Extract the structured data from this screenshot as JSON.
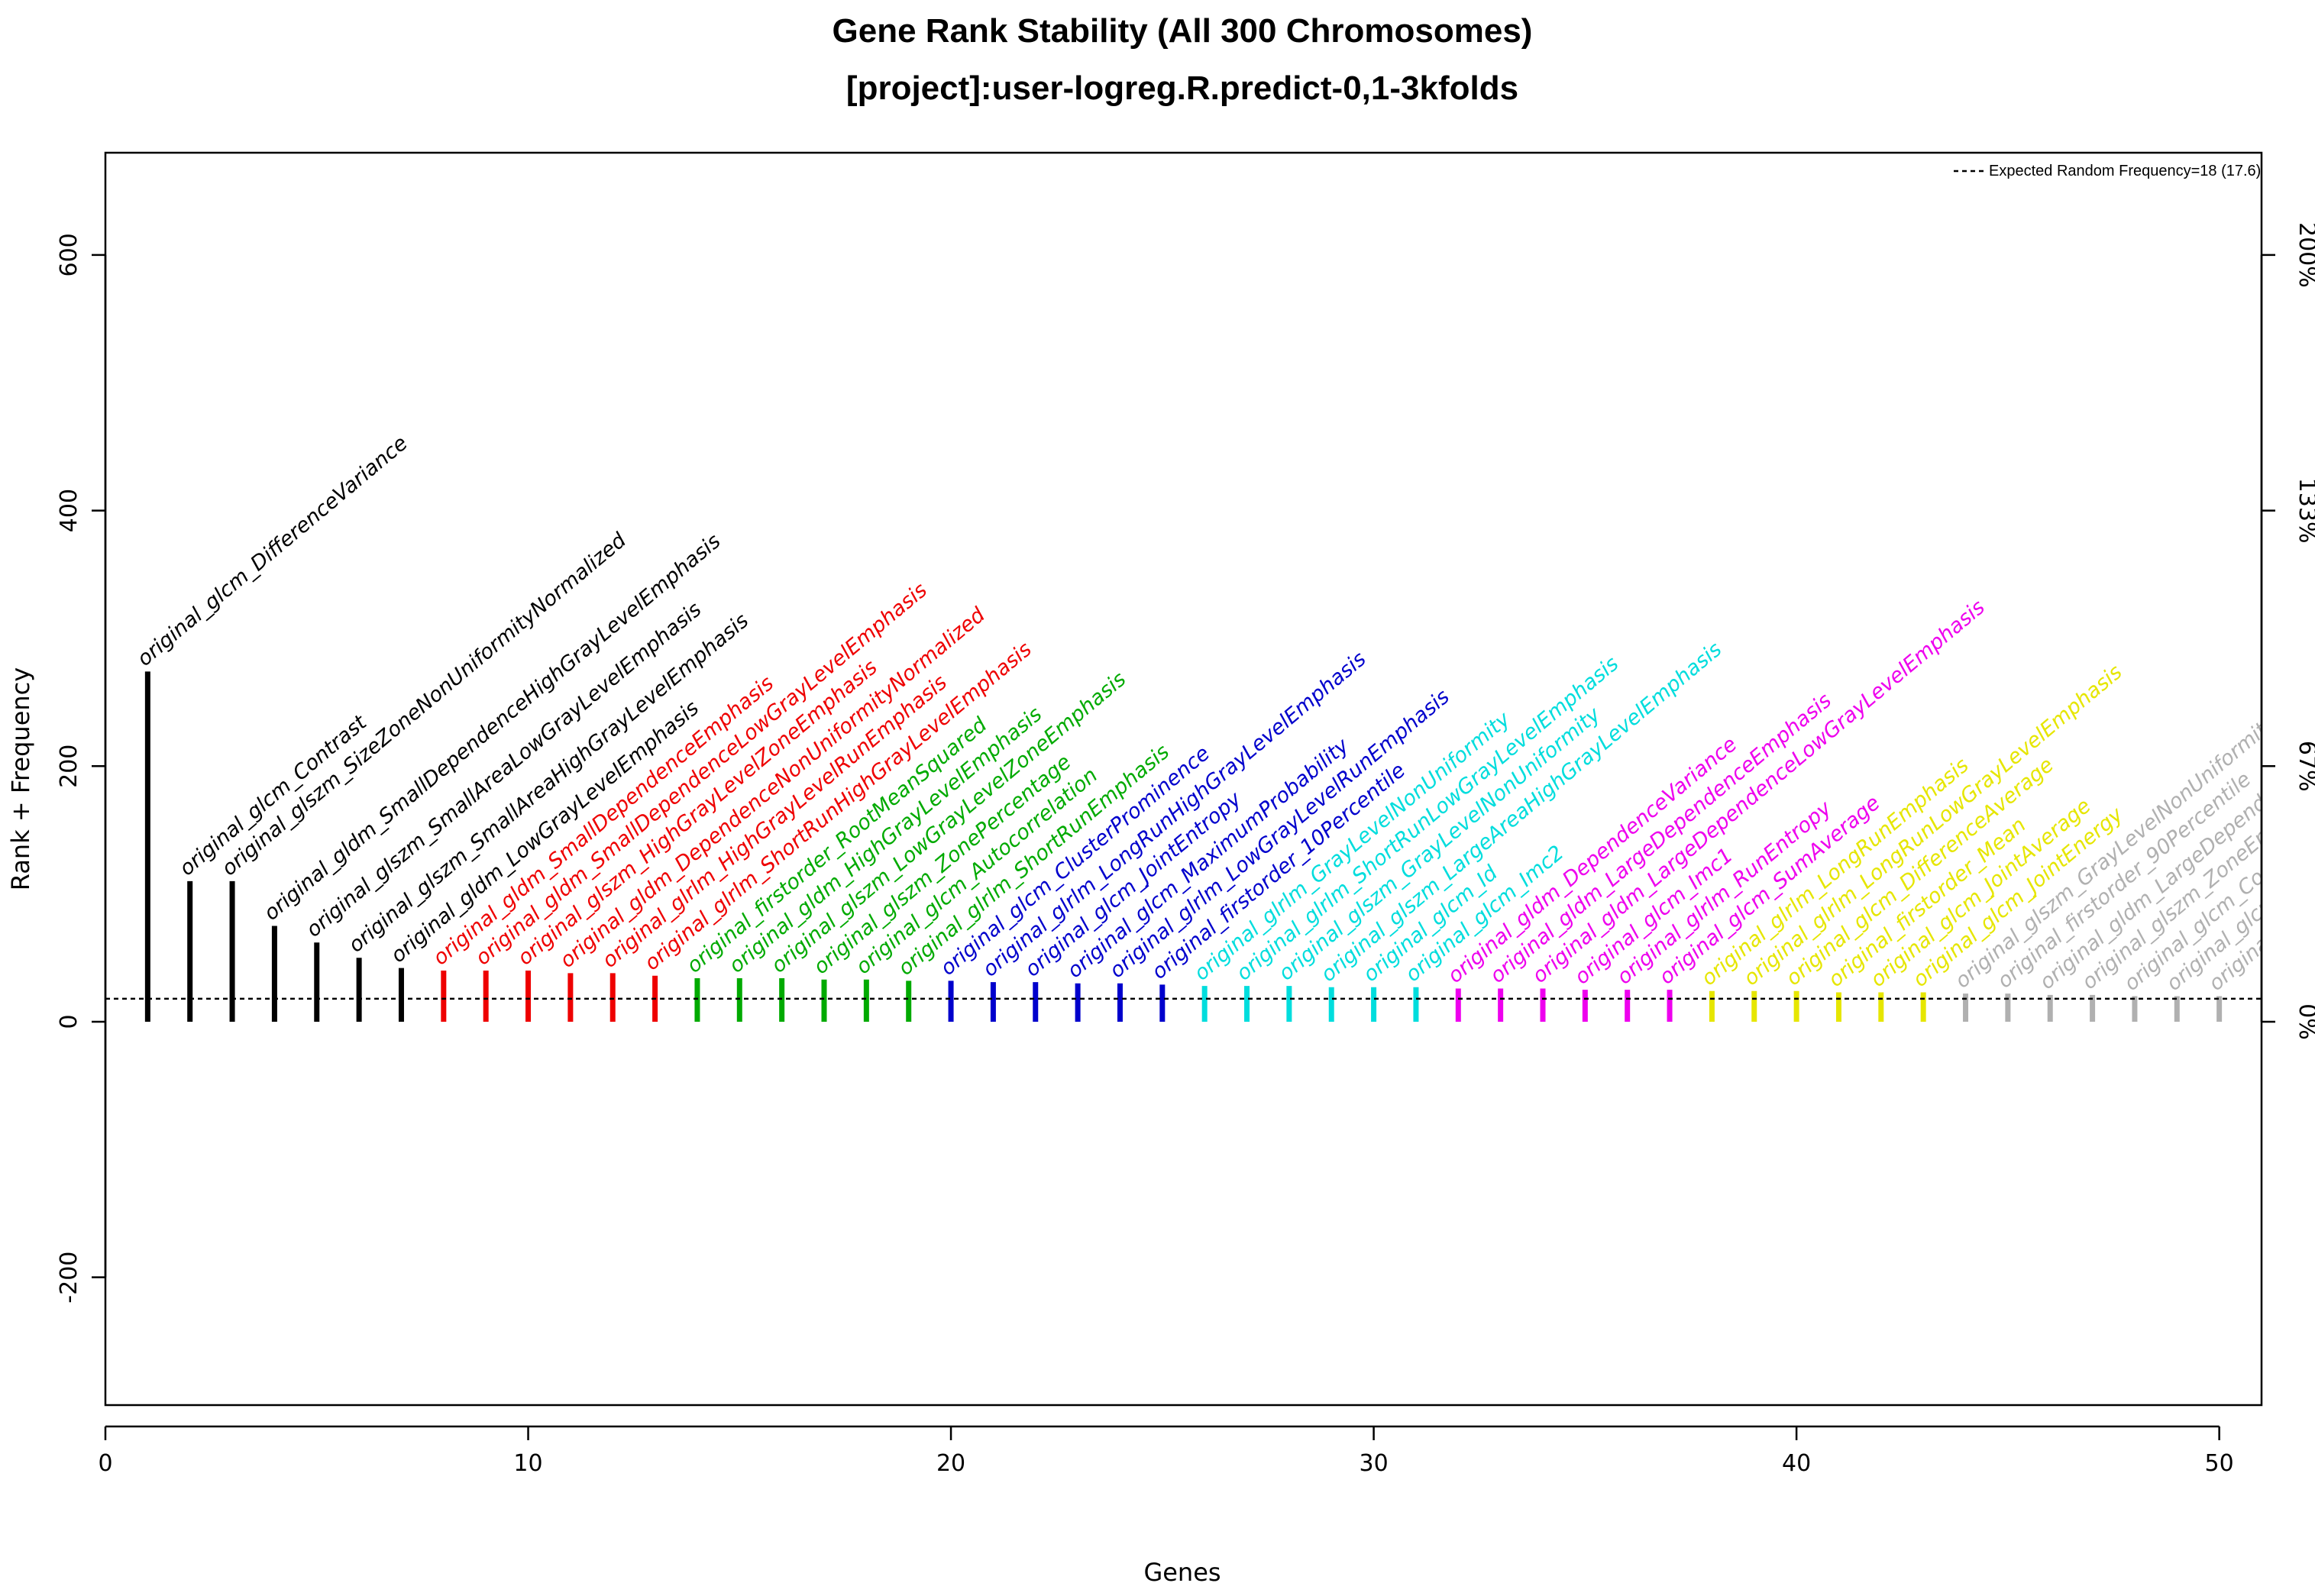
{
  "chart_data": {
    "type": "bar",
    "title": "Gene Rank Stability  (All 300 Chromosomes)",
    "subtitle": "[project]:user-logreg.R.predict-0,1-3kfolds",
    "xlabel": "Genes",
    "ylabel": "Rank + Frequency",
    "xlim": [
      0,
      51
    ],
    "ylim": [
      -300,
      680
    ],
    "x_ticks": [
      0,
      10,
      20,
      30,
      40,
      50
    ],
    "y_ticks": [
      -200,
      0,
      200,
      400,
      600
    ],
    "right_axis_ticks": [
      "0%",
      "67%",
      "133%",
      "200%"
    ],
    "right_axis_values": [
      0,
      200,
      400,
      600
    ],
    "reference_line": {
      "y": 18,
      "label": "Expected Random Frequency=18 (17.6)"
    },
    "heatmap_rows": 300,
    "heatmap_palette": [
      "#000000",
      "#ff0000",
      "#00bb00",
      "#0000ee",
      "#00eeee",
      "#ee00ee",
      "#ffff00",
      "#bbbbbb"
    ],
    "cluster_colors": [
      "#000000",
      "#ee0000",
      "#00aa00",
      "#0000cc",
      "#00dddd",
      "#ee00ee",
      "#e6e600",
      "#b0b0b0"
    ],
    "genes": [
      {
        "name": "original_glcm_DifferenceVariance",
        "frequency": 274,
        "cluster": 0
      },
      {
        "name": "original_glcm_Contrast",
        "frequency": 110,
        "cluster": 0
      },
      {
        "name": "original_glszm_SizeZoneNonUniformityNormalized",
        "frequency": 110,
        "cluster": 0
      },
      {
        "name": "original_gldm_SmallDependenceHighGrayLevelEmphasis",
        "frequency": 75,
        "cluster": 0
      },
      {
        "name": "original_glszm_SmallAreaLowGrayLevelEmphasis",
        "frequency": 62,
        "cluster": 0
      },
      {
        "name": "original_glszm_SmallAreaHighGrayLevelEmphasis",
        "frequency": 50,
        "cluster": 0
      },
      {
        "name": "original_gldm_LowGrayLevelEmphasis",
        "frequency": 42,
        "cluster": 0
      },
      {
        "name": "original_gldm_SmallDependenceEmphasis",
        "frequency": 40,
        "cluster": 1
      },
      {
        "name": "original_gldm_SmallDependenceLowGrayLevelEmphasis",
        "frequency": 40,
        "cluster": 1
      },
      {
        "name": "original_glszm_HighGrayLevelZoneEmphasis",
        "frequency": 40,
        "cluster": 1
      },
      {
        "name": "original_gldm_DependenceNonUniformityNormalized",
        "frequency": 38,
        "cluster": 1
      },
      {
        "name": "original_glrlm_HighGrayLevelRunEmphasis",
        "frequency": 38,
        "cluster": 1
      },
      {
        "name": "original_glrlm_ShortRunHighGrayLevelEmphasis",
        "frequency": 36,
        "cluster": 1
      },
      {
        "name": "original_firstorder_RootMeanSquared",
        "frequency": 34,
        "cluster": 2
      },
      {
        "name": "original_gldm_HighGrayLevelEmphasis",
        "frequency": 34,
        "cluster": 2
      },
      {
        "name": "original_glszm_LowGrayLevelZoneEmphasis",
        "frequency": 34,
        "cluster": 2
      },
      {
        "name": "original_glszm_ZonePercentage",
        "frequency": 33,
        "cluster": 2
      },
      {
        "name": "original_glcm_Autocorrelation",
        "frequency": 33,
        "cluster": 2
      },
      {
        "name": "original_glrlm_ShortRunEmphasis",
        "frequency": 32,
        "cluster": 2
      },
      {
        "name": "original_glcm_ClusterProminence",
        "frequency": 32,
        "cluster": 3
      },
      {
        "name": "original_glrlm_LongRunHighGrayLevelEmphasis",
        "frequency": 31,
        "cluster": 3
      },
      {
        "name": "original_glcm_JointEntropy",
        "frequency": 31,
        "cluster": 3
      },
      {
        "name": "original_glcm_MaximumProbability",
        "frequency": 30,
        "cluster": 3
      },
      {
        "name": "original_glrlm_LowGrayLevelRunEmphasis",
        "frequency": 30,
        "cluster": 3
      },
      {
        "name": "original_firstorder_10Percentile",
        "frequency": 29,
        "cluster": 3
      },
      {
        "name": "original_glrlm_GrayLevelNonUniformity",
        "frequency": 28,
        "cluster": 4
      },
      {
        "name": "original_glrlm_ShortRunLowGrayLevelEmphasis",
        "frequency": 28,
        "cluster": 4
      },
      {
        "name": "original_glszm_GrayLevelNonUniformity",
        "frequency": 28,
        "cluster": 4
      },
      {
        "name": "original_glszm_LargeAreaHighGrayLevelEmphasis",
        "frequency": 27,
        "cluster": 4
      },
      {
        "name": "original_glcm_Id",
        "frequency": 27,
        "cluster": 4
      },
      {
        "name": "original_glcm_Imc2",
        "frequency": 27,
        "cluster": 4
      },
      {
        "name": "original_gldm_DependenceVariance",
        "frequency": 26,
        "cluster": 5
      },
      {
        "name": "original_gldm_LargeDependenceEmphasis",
        "frequency": 26,
        "cluster": 5
      },
      {
        "name": "original_gldm_LargeDependenceLowGrayLevelEmphasis",
        "frequency": 26,
        "cluster": 5
      },
      {
        "name": "original_glcm_Imc1",
        "frequency": 25,
        "cluster": 5
      },
      {
        "name": "original_glrlm_RunEntropy",
        "frequency": 25,
        "cluster": 5
      },
      {
        "name": "original_glcm_SumAverage",
        "frequency": 25,
        "cluster": 5
      },
      {
        "name": "original_glrlm_LongRunEmphasis",
        "frequency": 24,
        "cluster": 6
      },
      {
        "name": "original_glrlm_LongRunLowGrayLevelEmphasis",
        "frequency": 24,
        "cluster": 6
      },
      {
        "name": "original_glcm_DifferenceAverage",
        "frequency": 24,
        "cluster": 6
      },
      {
        "name": "original_firstorder_Mean",
        "frequency": 23,
        "cluster": 6
      },
      {
        "name": "original_glcm_JointAverage",
        "frequency": 23,
        "cluster": 6
      },
      {
        "name": "original_glcm_JointEnergy",
        "frequency": 23,
        "cluster": 6
      },
      {
        "name": "original_glszm_GrayLevelNonUniformity",
        "frequency": 22,
        "cluster": 7
      },
      {
        "name": "original_firstorder_90Percentile",
        "frequency": 22,
        "cluster": 7
      },
      {
        "name": "original_gldm_LargeDependence",
        "frequency": 21,
        "cluster": 7
      },
      {
        "name": "original_glszm_ZoneEntropy",
        "frequency": 21,
        "cluster": 7
      },
      {
        "name": "original_glcm_Correlation",
        "frequency": 20,
        "cluster": 7
      },
      {
        "name": "original_glcm_InverseVariance",
        "frequency": 20,
        "cluster": 7
      },
      {
        "name": "original_glcm_MCC",
        "frequency": 20,
        "cluster": 7
      }
    ]
  }
}
